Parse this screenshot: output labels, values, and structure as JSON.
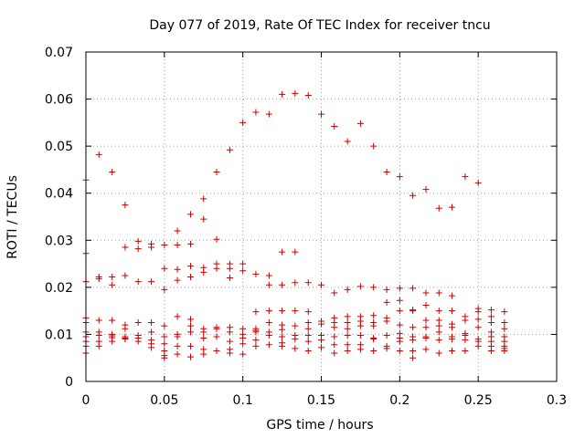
{
  "chart_data": {
    "type": "scatter",
    "title": "Day 077 of 2019, Rate Of TEC Index for receiver tncu",
    "xlabel": "GPS time / hours",
    "ylabel": "ROTI / TECUs",
    "xlim": [
      0,
      0.3
    ],
    "ylim": [
      0,
      0.07
    ],
    "x_ticks": [
      0,
      0.05,
      0.1,
      0.15,
      0.2,
      0.25,
      0.3
    ],
    "x_tick_labels": [
      "0",
      "0.05",
      "0.1",
      "0.15",
      "0.2",
      "0.25",
      "0.3"
    ],
    "y_ticks": [
      0,
      0.01,
      0.02,
      0.03,
      0.04,
      0.05,
      0.06,
      0.07
    ],
    "y_tick_labels": [
      "0",
      "0.01",
      "0.02",
      "0.03",
      "0.04",
      "0.05",
      "0.06",
      "0.07"
    ],
    "grid": true,
    "marker": "+",
    "color": "#cc0000",
    "points": [
      [
        0.0,
        0.0428
      ],
      [
        0.0,
        0.0272
      ],
      [
        0.0,
        0.0212
      ],
      [
        0.0,
        0.0135
      ],
      [
        0.0,
        0.0125
      ],
      [
        0.0,
        0.0105
      ],
      [
        0.0,
        0.0095
      ],
      [
        0.0,
        0.0085
      ],
      [
        0.0,
        0.0075
      ],
      [
        0.0,
        0.006
      ],
      [
        0.0083,
        0.0482
      ],
      [
        0.0083,
        0.0222
      ],
      [
        0.0083,
        0.0218
      ],
      [
        0.0083,
        0.013
      ],
      [
        0.0083,
        0.0105
      ],
      [
        0.0083,
        0.0098
      ],
      [
        0.0083,
        0.0085
      ],
      [
        0.0083,
        0.0075
      ],
      [
        0.0167,
        0.0445
      ],
      [
        0.0167,
        0.0222
      ],
      [
        0.0167,
        0.0205
      ],
      [
        0.0167,
        0.013
      ],
      [
        0.0167,
        0.01
      ],
      [
        0.0167,
        0.0097
      ],
      [
        0.0167,
        0.0093
      ],
      [
        0.0167,
        0.0085
      ],
      [
        0.025,
        0.0375
      ],
      [
        0.025,
        0.0285
      ],
      [
        0.025,
        0.0225
      ],
      [
        0.025,
        0.012
      ],
      [
        0.025,
        0.0112
      ],
      [
        0.025,
        0.0095
      ],
      [
        0.025,
        0.0092
      ],
      [
        0.025,
        0.009
      ],
      [
        0.0333,
        0.0298
      ],
      [
        0.0333,
        0.0282
      ],
      [
        0.0333,
        0.0212
      ],
      [
        0.0333,
        0.0125
      ],
      [
        0.0333,
        0.0098
      ],
      [
        0.0333,
        0.0092
      ],
      [
        0.0333,
        0.0085
      ],
      [
        0.0417,
        0.0292
      ],
      [
        0.0417,
        0.0285
      ],
      [
        0.0417,
        0.0212
      ],
      [
        0.0417,
        0.0125
      ],
      [
        0.0417,
        0.0105
      ],
      [
        0.0417,
        0.0088
      ],
      [
        0.0417,
        0.008
      ],
      [
        0.0417,
        0.0072
      ],
      [
        0.05,
        0.029
      ],
      [
        0.05,
        0.024
      ],
      [
        0.05,
        0.0195
      ],
      [
        0.05,
        0.0118
      ],
      [
        0.05,
        0.0095
      ],
      [
        0.05,
        0.008
      ],
      [
        0.05,
        0.0065
      ],
      [
        0.05,
        0.0055
      ],
      [
        0.05,
        0.005
      ],
      [
        0.0583,
        0.032
      ],
      [
        0.0583,
        0.029
      ],
      [
        0.0583,
        0.0238
      ],
      [
        0.0583,
        0.0215
      ],
      [
        0.0583,
        0.0138
      ],
      [
        0.0583,
        0.01
      ],
      [
        0.0583,
        0.0095
      ],
      [
        0.0583,
        0.0075
      ],
      [
        0.0583,
        0.0058
      ],
      [
        0.0667,
        0.0355
      ],
      [
        0.0667,
        0.0292
      ],
      [
        0.0667,
        0.0245
      ],
      [
        0.0667,
        0.0222
      ],
      [
        0.0667,
        0.0132
      ],
      [
        0.0667,
        0.0118
      ],
      [
        0.0667,
        0.0105
      ],
      [
        0.0667,
        0.0075
      ],
      [
        0.0667,
        0.0052
      ],
      [
        0.075,
        0.0388
      ],
      [
        0.075,
        0.0345
      ],
      [
        0.075,
        0.0242
      ],
      [
        0.075,
        0.0232
      ],
      [
        0.075,
        0.0112
      ],
      [
        0.075,
        0.0105
      ],
      [
        0.075,
        0.0092
      ],
      [
        0.075,
        0.0068
      ],
      [
        0.075,
        0.0058
      ],
      [
        0.0833,
        0.0445
      ],
      [
        0.0833,
        0.0302
      ],
      [
        0.0833,
        0.025
      ],
      [
        0.0833,
        0.024
      ],
      [
        0.0833,
        0.0115
      ],
      [
        0.0833,
        0.0112
      ],
      [
        0.0833,
        0.0095
      ],
      [
        0.0833,
        0.0065
      ],
      [
        0.0917,
        0.0492
      ],
      [
        0.0917,
        0.025
      ],
      [
        0.0917,
        0.024
      ],
      [
        0.0917,
        0.022
      ],
      [
        0.0917,
        0.0115
      ],
      [
        0.0917,
        0.0105
      ],
      [
        0.0917,
        0.0085
      ],
      [
        0.0917,
        0.0068
      ],
      [
        0.0917,
        0.006
      ],
      [
        0.1,
        0.055
      ],
      [
        0.1,
        0.025
      ],
      [
        0.1,
        0.0235
      ],
      [
        0.1,
        0.0112
      ],
      [
        0.1,
        0.01
      ],
      [
        0.1,
        0.0092
      ],
      [
        0.1,
        0.008
      ],
      [
        0.1,
        0.0058
      ],
      [
        0.1083,
        0.0572
      ],
      [
        0.1083,
        0.0228
      ],
      [
        0.1083,
        0.0148
      ],
      [
        0.1083,
        0.0112
      ],
      [
        0.1083,
        0.0108
      ],
      [
        0.1083,
        0.0105
      ],
      [
        0.1083,
        0.0088
      ],
      [
        0.1083,
        0.0075
      ],
      [
        0.1167,
        0.0568
      ],
      [
        0.1167,
        0.0225
      ],
      [
        0.1167,
        0.0205
      ],
      [
        0.1167,
        0.015
      ],
      [
        0.1167,
        0.0125
      ],
      [
        0.1167,
        0.0105
      ],
      [
        0.1167,
        0.0098
      ],
      [
        0.1167,
        0.0078
      ],
      [
        0.125,
        0.061
      ],
      [
        0.125,
        0.0275
      ],
      [
        0.125,
        0.0205
      ],
      [
        0.125,
        0.015
      ],
      [
        0.125,
        0.012
      ],
      [
        0.125,
        0.011
      ],
      [
        0.125,
        0.0095
      ],
      [
        0.125,
        0.0082
      ],
      [
        0.125,
        0.0075
      ],
      [
        0.1333,
        0.0612
      ],
      [
        0.1333,
        0.0275
      ],
      [
        0.1333,
        0.021
      ],
      [
        0.1333,
        0.015
      ],
      [
        0.1333,
        0.0118
      ],
      [
        0.1333,
        0.0098
      ],
      [
        0.1333,
        0.009
      ],
      [
        0.1333,
        0.007
      ],
      [
        0.1417,
        0.0608
      ],
      [
        0.1417,
        0.021
      ],
      [
        0.1417,
        0.0148
      ],
      [
        0.1417,
        0.0125
      ],
      [
        0.1417,
        0.0112
      ],
      [
        0.1417,
        0.0098
      ],
      [
        0.1417,
        0.0085
      ],
      [
        0.1417,
        0.0065
      ],
      [
        0.15,
        0.0568
      ],
      [
        0.15,
        0.0205
      ],
      [
        0.15,
        0.0128
      ],
      [
        0.15,
        0.0122
      ],
      [
        0.15,
        0.0098
      ],
      [
        0.15,
        0.0088
      ],
      [
        0.15,
        0.0072
      ],
      [
        0.1583,
        0.0542
      ],
      [
        0.1583,
        0.0188
      ],
      [
        0.1583,
        0.0135
      ],
      [
        0.1583,
        0.0125
      ],
      [
        0.1583,
        0.0115
      ],
      [
        0.1583,
        0.0095
      ],
      [
        0.1583,
        0.0078
      ],
      [
        0.1583,
        0.006
      ],
      [
        0.1667,
        0.051
      ],
      [
        0.1667,
        0.0195
      ],
      [
        0.1667,
        0.0138
      ],
      [
        0.1667,
        0.0125
      ],
      [
        0.1667,
        0.0112
      ],
      [
        0.1667,
        0.0098
      ],
      [
        0.1667,
        0.0078
      ],
      [
        0.1667,
        0.0065
      ],
      [
        0.175,
        0.0548
      ],
      [
        0.175,
        0.0202
      ],
      [
        0.175,
        0.0138
      ],
      [
        0.175,
        0.0128
      ],
      [
        0.175,
        0.0118
      ],
      [
        0.175,
        0.0098
      ],
      [
        0.175,
        0.0078
      ],
      [
        0.175,
        0.0068
      ],
      [
        0.1833,
        0.05
      ],
      [
        0.1833,
        0.02
      ],
      [
        0.1833,
        0.014
      ],
      [
        0.1833,
        0.0125
      ],
      [
        0.1833,
        0.0118
      ],
      [
        0.1833,
        0.0092
      ],
      [
        0.1833,
        0.009
      ],
      [
        0.1833,
        0.0065
      ],
      [
        0.1917,
        0.0445
      ],
      [
        0.1917,
        0.0195
      ],
      [
        0.1917,
        0.0168
      ],
      [
        0.1917,
        0.0135
      ],
      [
        0.1917,
        0.0128
      ],
      [
        0.1917,
        0.0098
      ],
      [
        0.1917,
        0.0075
      ],
      [
        0.1917,
        0.007
      ],
      [
        0.2,
        0.0435
      ],
      [
        0.2,
        0.0198
      ],
      [
        0.2,
        0.0172
      ],
      [
        0.2,
        0.015
      ],
      [
        0.2,
        0.012
      ],
      [
        0.2,
        0.0102
      ],
      [
        0.2,
        0.0092
      ],
      [
        0.2,
        0.0085
      ],
      [
        0.2,
        0.0065
      ],
      [
        0.2083,
        0.0395
      ],
      [
        0.2083,
        0.0198
      ],
      [
        0.2083,
        0.0152
      ],
      [
        0.2083,
        0.015
      ],
      [
        0.2083,
        0.0115
      ],
      [
        0.2083,
        0.0095
      ],
      [
        0.2083,
        0.0088
      ],
      [
        0.2083,
        0.0065
      ],
      [
        0.2083,
        0.005
      ],
      [
        0.2167,
        0.0408
      ],
      [
        0.2167,
        0.0188
      ],
      [
        0.2167,
        0.0162
      ],
      [
        0.2167,
        0.013
      ],
      [
        0.2167,
        0.0115
      ],
      [
        0.2167,
        0.0095
      ],
      [
        0.2167,
        0.0092
      ],
      [
        0.2167,
        0.0068
      ],
      [
        0.225,
        0.0368
      ],
      [
        0.225,
        0.0188
      ],
      [
        0.225,
        0.015
      ],
      [
        0.225,
        0.013
      ],
      [
        0.225,
        0.0118
      ],
      [
        0.225,
        0.0105
      ],
      [
        0.225,
        0.0088
      ],
      [
        0.225,
        0.006
      ],
      [
        0.2333,
        0.037
      ],
      [
        0.2333,
        0.0182
      ],
      [
        0.2333,
        0.015
      ],
      [
        0.2333,
        0.0122
      ],
      [
        0.2333,
        0.0115
      ],
      [
        0.2333,
        0.0095
      ],
      [
        0.2333,
        0.009
      ],
      [
        0.2333,
        0.0065
      ],
      [
        0.2417,
        0.0435
      ],
      [
        0.2417,
        0.0138
      ],
      [
        0.2417,
        0.013
      ],
      [
        0.2417,
        0.0102
      ],
      [
        0.2417,
        0.0098
      ],
      [
        0.2417,
        0.0088
      ],
      [
        0.2417,
        0.0065
      ],
      [
        0.25,
        0.0422
      ],
      [
        0.25,
        0.0155
      ],
      [
        0.25,
        0.0148
      ],
      [
        0.25,
        0.0132
      ],
      [
        0.25,
        0.0115
      ],
      [
        0.25,
        0.009
      ],
      [
        0.25,
        0.0085
      ],
      [
        0.25,
        0.0075
      ],
      [
        0.2583,
        0.0152
      ],
      [
        0.2583,
        0.0138
      ],
      [
        0.2583,
        0.0125
      ],
      [
        0.2583,
        0.0105
      ],
      [
        0.2583,
        0.0095
      ],
      [
        0.2583,
        0.0085
      ],
      [
        0.2583,
        0.0075
      ],
      [
        0.2583,
        0.0065
      ],
      [
        0.2667,
        0.0148
      ],
      [
        0.2667,
        0.0125
      ],
      [
        0.2667,
        0.0112
      ],
      [
        0.2667,
        0.0095
      ],
      [
        0.2667,
        0.0085
      ],
      [
        0.2667,
        0.0075
      ],
      [
        0.2667,
        0.007
      ],
      [
        0.2667,
        0.0065
      ]
    ]
  }
}
